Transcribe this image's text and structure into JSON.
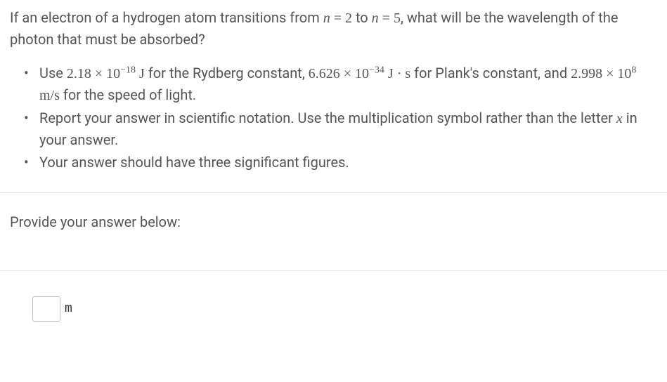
{
  "question": {
    "pre_text": "If an electron of a hydrogen atom transitions from ",
    "n_var": "n",
    "eq1": " = 2",
    "mid_text": " to ",
    "eq2": " = 5",
    "post_text": ", what will be the wavelength of the photon that must be absorbed?"
  },
  "bullets": {
    "b1": {
      "t1": "Use ",
      "v1": "2.18 × 10",
      "e1": "−18",
      "u1": " J",
      "t2": " for the Rydberg constant, ",
      "v2": "6.626 × 10",
      "e2": "−34",
      "u2": " J · s",
      "t3": " for Plank's constant, and ",
      "v3": "2.998 × 10",
      "e3": "8",
      "u3": " m/s",
      "t4": " for the speed of light."
    },
    "b2": {
      "t1": "Report your answer in scientific notation. Use the multiplication symbol rather than the letter ",
      "var": "x",
      "t2": " in your answer."
    },
    "b3": {
      "t1": "Your answer should have three significant figures."
    }
  },
  "provide_label": "Provide your answer below:",
  "answer": {
    "value": "",
    "unit": "m"
  }
}
